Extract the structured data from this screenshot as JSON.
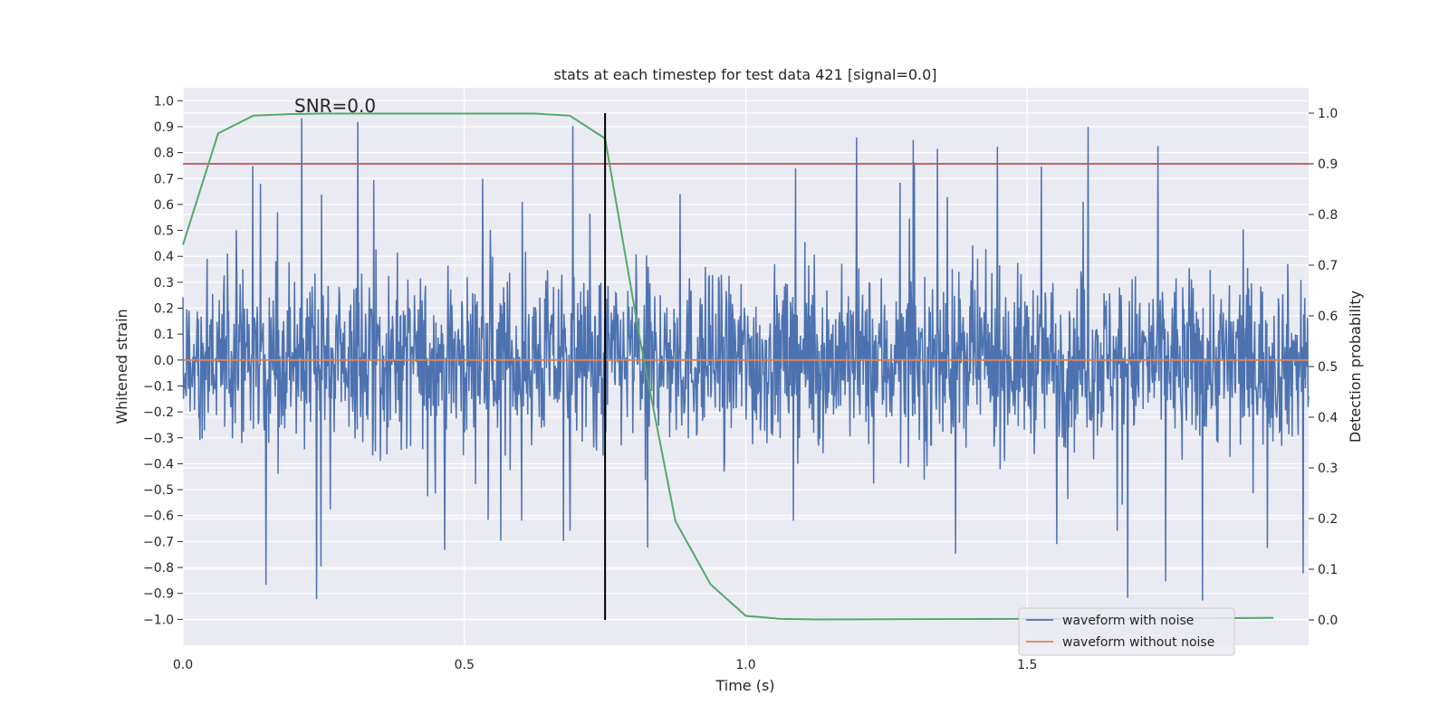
{
  "chart_data": {
    "type": "line",
    "title": "stats at each timestep for test data 421 [signal=0.0]",
    "xlabel": "Time (s)",
    "ylabel": "Whitened strain",
    "y2label": "Detection probability",
    "annotation": "SNR=0.0",
    "xlim": [
      0.0,
      2.0
    ],
    "ylim": [
      -1.1,
      1.05
    ],
    "y2lim": [
      -0.05,
      1.05
    ],
    "xticks": [
      0.0,
      0.5,
      1.0,
      1.5
    ],
    "xtick_labels": [
      "0.0",
      "0.5",
      "1.0",
      "1.5"
    ],
    "yticks": [
      -1.0,
      -0.9,
      -0.8,
      -0.7,
      -0.6,
      -0.5,
      -0.4,
      -0.3,
      -0.2,
      -0.1,
      0.0,
      0.1,
      0.2,
      0.3,
      0.4,
      0.5,
      0.6,
      0.7,
      0.8,
      0.9,
      1.0
    ],
    "ytick_labels": [
      "−1.0",
      "−0.9",
      "−0.8",
      "−0.7",
      "−0.6",
      "−0.5",
      "−0.4",
      "−0.3",
      "−0.2",
      "−0.1",
      "0.0",
      "0.1",
      "0.2",
      "0.3",
      "0.4",
      "0.5",
      "0.6",
      "0.7",
      "0.8",
      "0.9",
      "1.0"
    ],
    "y2ticks": [
      0.0,
      0.1,
      0.2,
      0.3,
      0.4,
      0.5,
      0.6,
      0.7,
      0.8,
      0.9,
      1.0
    ],
    "y2tick_labels": [
      "0.0",
      "0.1",
      "0.2",
      "0.3",
      "0.4",
      "0.5",
      "0.6",
      "0.7",
      "0.8",
      "0.9",
      "1.0"
    ],
    "grid": true,
    "legend_position": "lower-right",
    "series": [
      {
        "name": "waveform with noise",
        "axis": "left",
        "color": "#4c72b0",
        "kind": "noise",
        "amplitude_range": [
          -1.0,
          0.95
        ]
      },
      {
        "name": "waveform without noise",
        "axis": "left",
        "color": "#dd8452",
        "x": [
          0.0,
          2.0
        ],
        "y": [
          0.0,
          0.0
        ]
      },
      {
        "axis": "right",
        "color": "#55a868",
        "x": [
          0.0,
          0.0625,
          0.125,
          0.1875,
          0.25,
          0.3125,
          0.375,
          0.4375,
          0.5,
          0.5625,
          0.625,
          0.6875,
          0.75,
          0.8125,
          0.875,
          0.9375,
          1.0,
          1.0625,
          1.125,
          1.5,
          1.75,
          1.9375
        ],
        "y": [
          0.74,
          0.96,
          0.995,
          0.998,
          0.999,
          0.999,
          0.999,
          0.999,
          0.999,
          0.999,
          0.999,
          0.995,
          0.95,
          0.55,
          0.195,
          0.07,
          0.008,
          0.002,
          0.001,
          0.002,
          0.003,
          0.004
        ]
      }
    ],
    "threshold": {
      "axis": "right",
      "y": 0.9,
      "color": "#c44e52"
    },
    "marker_line": {
      "x": 0.75,
      "color": "#000000"
    }
  }
}
